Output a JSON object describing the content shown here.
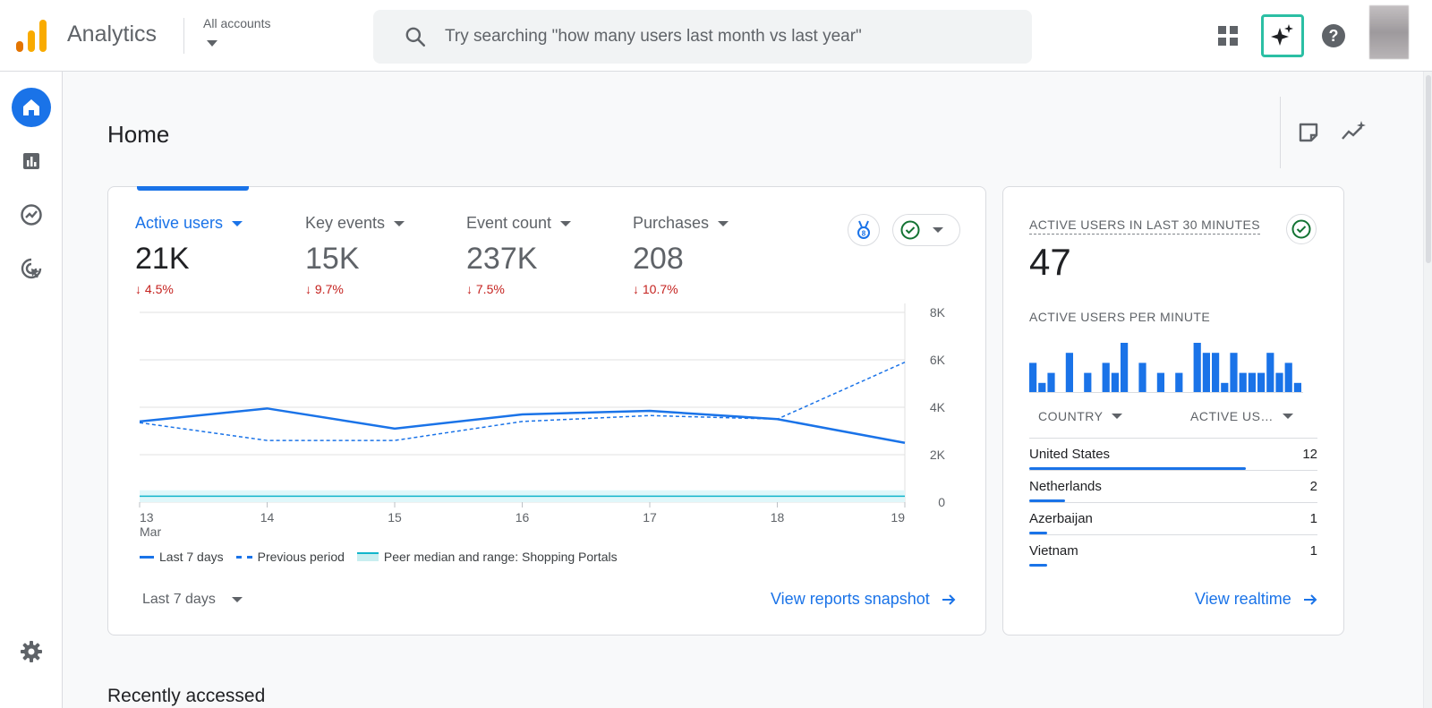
{
  "header": {
    "app_title": "Analytics",
    "account_selector": "All accounts",
    "search_placeholder": "Try searching \"how many users last month vs last year\""
  },
  "page": {
    "title": "Home",
    "recently_accessed": "Recently accessed"
  },
  "metrics": [
    {
      "label": "Active users",
      "value": "21K",
      "change": "↓ 4.5%"
    },
    {
      "label": "Key events",
      "value": "15K",
      "change": "↓ 9.7%"
    },
    {
      "label": "Event count",
      "value": "237K",
      "change": "↓ 7.5%"
    },
    {
      "label": "Purchases",
      "value": "208",
      "change": "↓ 10.7%"
    }
  ],
  "chart_data": {
    "type": "line",
    "x": [
      "13",
      "14",
      "15",
      "16",
      "17",
      "18",
      "19"
    ],
    "x_sublabel_first": "Mar",
    "ylim": [
      0,
      8000
    ],
    "y_ticks": [
      "0",
      "2K",
      "4K",
      "6K",
      "8K"
    ],
    "series": [
      {
        "name": "Last 7 days",
        "style": "solid",
        "values": [
          3400,
          3950,
          3100,
          3700,
          3850,
          3500,
          2500
        ]
      },
      {
        "name": "Previous period",
        "style": "dashed",
        "values": [
          3350,
          2600,
          2600,
          3400,
          3650,
          3500,
          5900
        ]
      },
      {
        "name": "Peer median and range: Shopping Portals",
        "style": "band",
        "values": [
          250,
          250,
          250,
          250,
          250,
          250,
          250
        ],
        "range": [
          0,
          500
        ]
      }
    ],
    "colors": {
      "line": "#1a73e8",
      "peer": "#12b5cb",
      "peer_band": "#e0f7fa",
      "grid": "#e0e0e0"
    }
  },
  "footer": {
    "range_label": "Last 7 days",
    "snapshot_link": "View reports snapshot"
  },
  "realtime": {
    "title": "ACTIVE USERS IN LAST 30 MINUTES",
    "value": "47",
    "per_minute_label": "ACTIVE USERS PER MINUTE",
    "per_minute_values": [
      3,
      1,
      2,
      0,
      4,
      0,
      2,
      0,
      3,
      2,
      5,
      0,
      3,
      0,
      2,
      0,
      2,
      0,
      5,
      4,
      4,
      1,
      4,
      2,
      2,
      2,
      4,
      2,
      3,
      1
    ],
    "col_country": "COUNTRY",
    "col_users": "ACTIVE US…",
    "rows": [
      {
        "country": "United States",
        "value": "12",
        "share": 12
      },
      {
        "country": "Netherlands",
        "value": "2",
        "share": 2
      },
      {
        "country": "Azerbaijan",
        "value": "1",
        "share": 1
      },
      {
        "country": "Vietnam",
        "value": "1",
        "share": 1
      }
    ],
    "link": "View realtime"
  }
}
